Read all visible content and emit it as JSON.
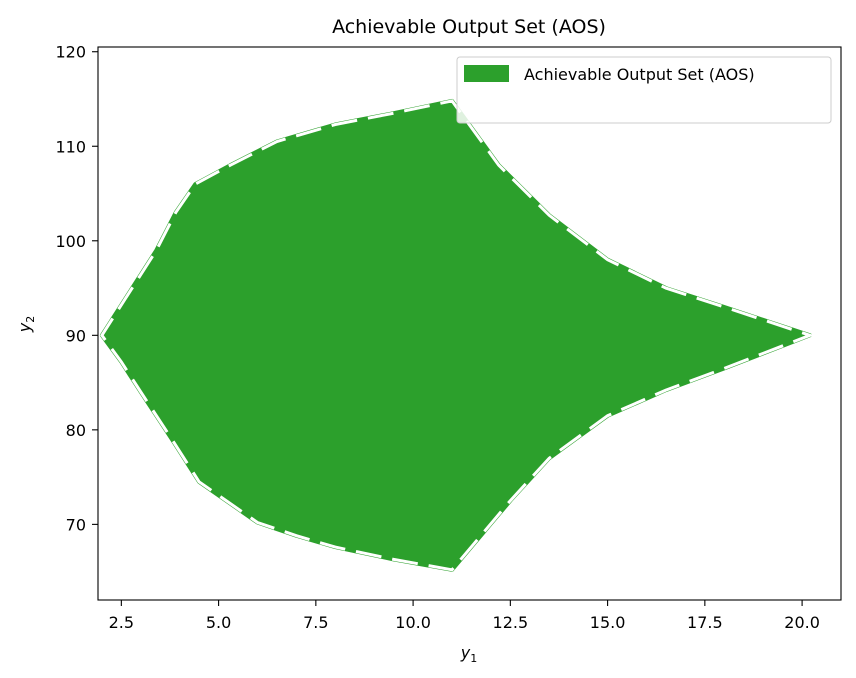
{
  "chart_data": {
    "type": "area",
    "title": "Achievable Output Set (AOS)",
    "xlabel": "y",
    "xlabel_sub": "1",
    "ylabel": "y",
    "ylabel_sub": "2",
    "xlim": [
      1.9,
      21.0
    ],
    "ylim": [
      62.0,
      120.5
    ],
    "xticks": [
      2.5,
      5.0,
      7.5,
      10.0,
      12.5,
      15.0,
      17.5,
      20.0
    ],
    "xtick_labels": [
      "2.5",
      "5.0",
      "7.5",
      "10.0",
      "12.5",
      "15.0",
      "17.5",
      "20.0"
    ],
    "yticks": [
      70,
      80,
      90,
      100,
      110,
      120
    ],
    "ytick_labels": [
      "70",
      "80",
      "90",
      "100",
      "110",
      "120"
    ],
    "grid": false,
    "legend": {
      "position": "top-right",
      "entries": [
        "Achievable Output Set (AOS)"
      ]
    },
    "colors": {
      "fill": "#2ca02c",
      "edge": "#ffffff"
    },
    "series": [
      {
        "name": "Achievable Output Set (AOS)",
        "points": [
          [
            2.0,
            90.0
          ],
          [
            2.7,
            94.5
          ],
          [
            3.4,
            99.0
          ],
          [
            3.9,
            103.0
          ],
          [
            4.4,
            106.0
          ],
          [
            5.3,
            108.0
          ],
          [
            6.5,
            110.5
          ],
          [
            8.0,
            112.3
          ],
          [
            9.5,
            113.5
          ],
          [
            11.0,
            114.8
          ],
          [
            12.2,
            108.0
          ],
          [
            13.5,
            102.7
          ],
          [
            15.0,
            98.0
          ],
          [
            16.5,
            95.0
          ],
          [
            18.0,
            93.0
          ],
          [
            20.2,
            90.0
          ],
          [
            18.0,
            86.5
          ],
          [
            16.5,
            84.2
          ],
          [
            15.0,
            81.5
          ],
          [
            13.5,
            77.0
          ],
          [
            12.5,
            72.5
          ],
          [
            11.0,
            65.2
          ],
          [
            9.5,
            66.3
          ],
          [
            8.0,
            67.6
          ],
          [
            7.0,
            68.8
          ],
          [
            6.0,
            70.2
          ],
          [
            4.5,
            74.5
          ],
          [
            3.8,
            79.0
          ],
          [
            3.0,
            84.0
          ],
          [
            2.5,
            87.2
          ]
        ]
      }
    ]
  }
}
